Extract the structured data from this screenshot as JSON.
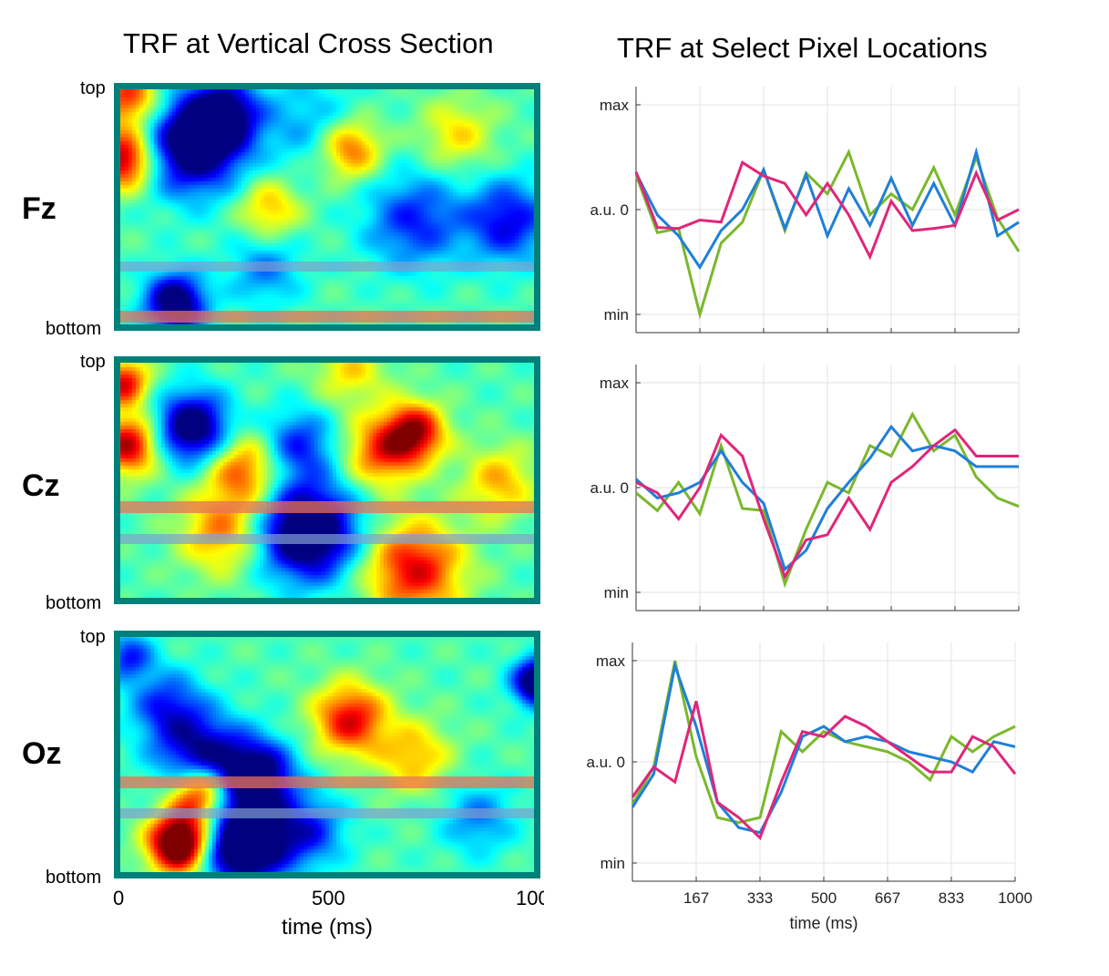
{
  "titles": {
    "left": "TRF at Vertical Cross Section",
    "right": "TRF at Select Pixel Locations"
  },
  "rows": [
    {
      "label": "Fz"
    },
    {
      "label": "Cz"
    },
    {
      "label": "Oz"
    }
  ],
  "heatmaps": {
    "y_top_label": "top",
    "y_bottom_label": "bottom",
    "x_ticks": [
      "0",
      "500",
      "100"
    ],
    "x_label": "time (ms)",
    "band_colors": {
      "upper": "#e8705a",
      "lower": "#7f9fd0"
    }
  },
  "colors": {
    "frame": "#00807a",
    "green": "#7ab82c",
    "blue": "#1f7fd8",
    "pink": "#e0267a"
  },
  "chart_data": [
    {
      "type": "line",
      "title": "",
      "x": [
        0,
        55.6,
        111.1,
        166.7,
        222.2,
        277.8,
        333.3,
        388.9,
        444.4,
        500,
        555.6,
        611.1,
        666.7,
        722.2,
        777.8,
        833.3,
        888.9,
        944.4,
        1000
      ],
      "xlim": [
        0,
        1000
      ],
      "ylim": [
        -1,
        1
      ],
      "yticks": [
        {
          "v": 1,
          "label": "max"
        },
        {
          "v": 0,
          "label": "a.u. 0"
        },
        {
          "v": -1,
          "label": "min"
        }
      ],
      "xticks": [],
      "grid": true,
      "series": [
        {
          "color": "green",
          "values": [
            0.33,
            -0.22,
            -0.18,
            -1.0,
            -0.32,
            -0.12,
            0.38,
            -0.2,
            0.35,
            0.15,
            0.55,
            -0.05,
            0.15,
            0.0,
            0.4,
            -0.05,
            0.5,
            -0.08,
            -0.4
          ]
        },
        {
          "color": "blue",
          "values": [
            0.35,
            -0.05,
            -0.25,
            -0.55,
            -0.2,
            0.0,
            0.38,
            -0.18,
            0.33,
            -0.25,
            0.2,
            -0.15,
            0.3,
            -0.15,
            0.25,
            -0.15,
            0.55,
            -0.25,
            -0.12
          ]
        },
        {
          "color": "pink",
          "values": [
            0.36,
            -0.17,
            -0.18,
            -0.1,
            -0.12,
            0.45,
            0.32,
            0.25,
            -0.05,
            0.25,
            -0.05,
            -0.45,
            0.08,
            -0.2,
            -0.18,
            -0.15,
            0.35,
            -0.1,
            0.0
          ]
        }
      ]
    },
    {
      "type": "line",
      "title": "",
      "x": [
        0,
        55.6,
        111.1,
        166.7,
        222.2,
        277.8,
        333.3,
        388.9,
        444.4,
        500,
        555.6,
        611.1,
        666.7,
        722.2,
        777.8,
        833.3,
        888.9,
        944.4,
        1000
      ],
      "xlim": [
        0,
        1000
      ],
      "ylim": [
        -1,
        1
      ],
      "yticks": [
        {
          "v": 1,
          "label": "max"
        },
        {
          "v": 0,
          "label": "a.u. 0"
        },
        {
          "v": -1,
          "label": "min"
        }
      ],
      "xticks": [],
      "grid": true,
      "series": [
        {
          "color": "green",
          "values": [
            -0.05,
            -0.22,
            0.05,
            -0.25,
            0.4,
            -0.2,
            -0.22,
            -0.92,
            -0.4,
            0.05,
            -0.05,
            0.4,
            0.3,
            0.7,
            0.35,
            0.5,
            0.1,
            -0.1,
            -0.18
          ]
        },
        {
          "color": "blue",
          "values": [
            0.08,
            -0.1,
            -0.05,
            0.05,
            0.35,
            0.05,
            -0.15,
            -0.78,
            -0.6,
            -0.2,
            0.05,
            0.28,
            0.58,
            0.35,
            0.4,
            0.35,
            0.2,
            0.2,
            0.2
          ]
        },
        {
          "color": "pink",
          "values": [
            0.05,
            -0.05,
            -0.3,
            0.0,
            0.5,
            0.3,
            -0.3,
            -0.85,
            -0.5,
            -0.45,
            -0.1,
            -0.4,
            0.05,
            0.2,
            0.4,
            0.55,
            0.3,
            0.3,
            0.3
          ]
        }
      ]
    },
    {
      "type": "line",
      "title": "",
      "x": [
        0,
        55.6,
        111.1,
        166.7,
        222.2,
        277.8,
        333.3,
        388.9,
        444.4,
        500,
        555.6,
        611.1,
        666.7,
        722.2,
        777.8,
        833.3,
        888.9,
        944.4,
        1000
      ],
      "xlim": [
        0,
        1000
      ],
      "ylim": [
        -1,
        1
      ],
      "yticks": [
        {
          "v": 1,
          "label": "max"
        },
        {
          "v": 0,
          "label": "a.u. 0"
        },
        {
          "v": -1,
          "label": "min"
        }
      ],
      "xticks": [
        "167",
        "333",
        "500",
        "667",
        "833",
        "1000"
      ],
      "xticks_v": [
        166.7,
        333.3,
        500,
        666.7,
        833.3,
        1000
      ],
      "xlabel": "time (ms)",
      "grid": true,
      "series": [
        {
          "color": "green",
          "values": [
            -0.42,
            -0.05,
            1.0,
            0.05,
            -0.55,
            -0.6,
            -0.55,
            0.3,
            0.1,
            0.3,
            0.2,
            0.15,
            0.1,
            0.0,
            -0.18,
            0.25,
            0.1,
            0.25,
            0.35
          ]
        },
        {
          "color": "blue",
          "values": [
            -0.45,
            -0.12,
            0.95,
            0.35,
            -0.4,
            -0.65,
            -0.7,
            -0.3,
            0.25,
            0.35,
            0.2,
            0.25,
            0.2,
            0.1,
            0.05,
            0.0,
            -0.1,
            0.2,
            0.15
          ]
        },
        {
          "color": "pink",
          "values": [
            -0.35,
            -0.05,
            -0.2,
            0.6,
            -0.4,
            -0.55,
            -0.75,
            -0.2,
            0.3,
            0.25,
            0.45,
            0.35,
            0.2,
            0.05,
            -0.1,
            -0.1,
            0.25,
            0.15,
            -0.12
          ]
        }
      ]
    }
  ]
}
